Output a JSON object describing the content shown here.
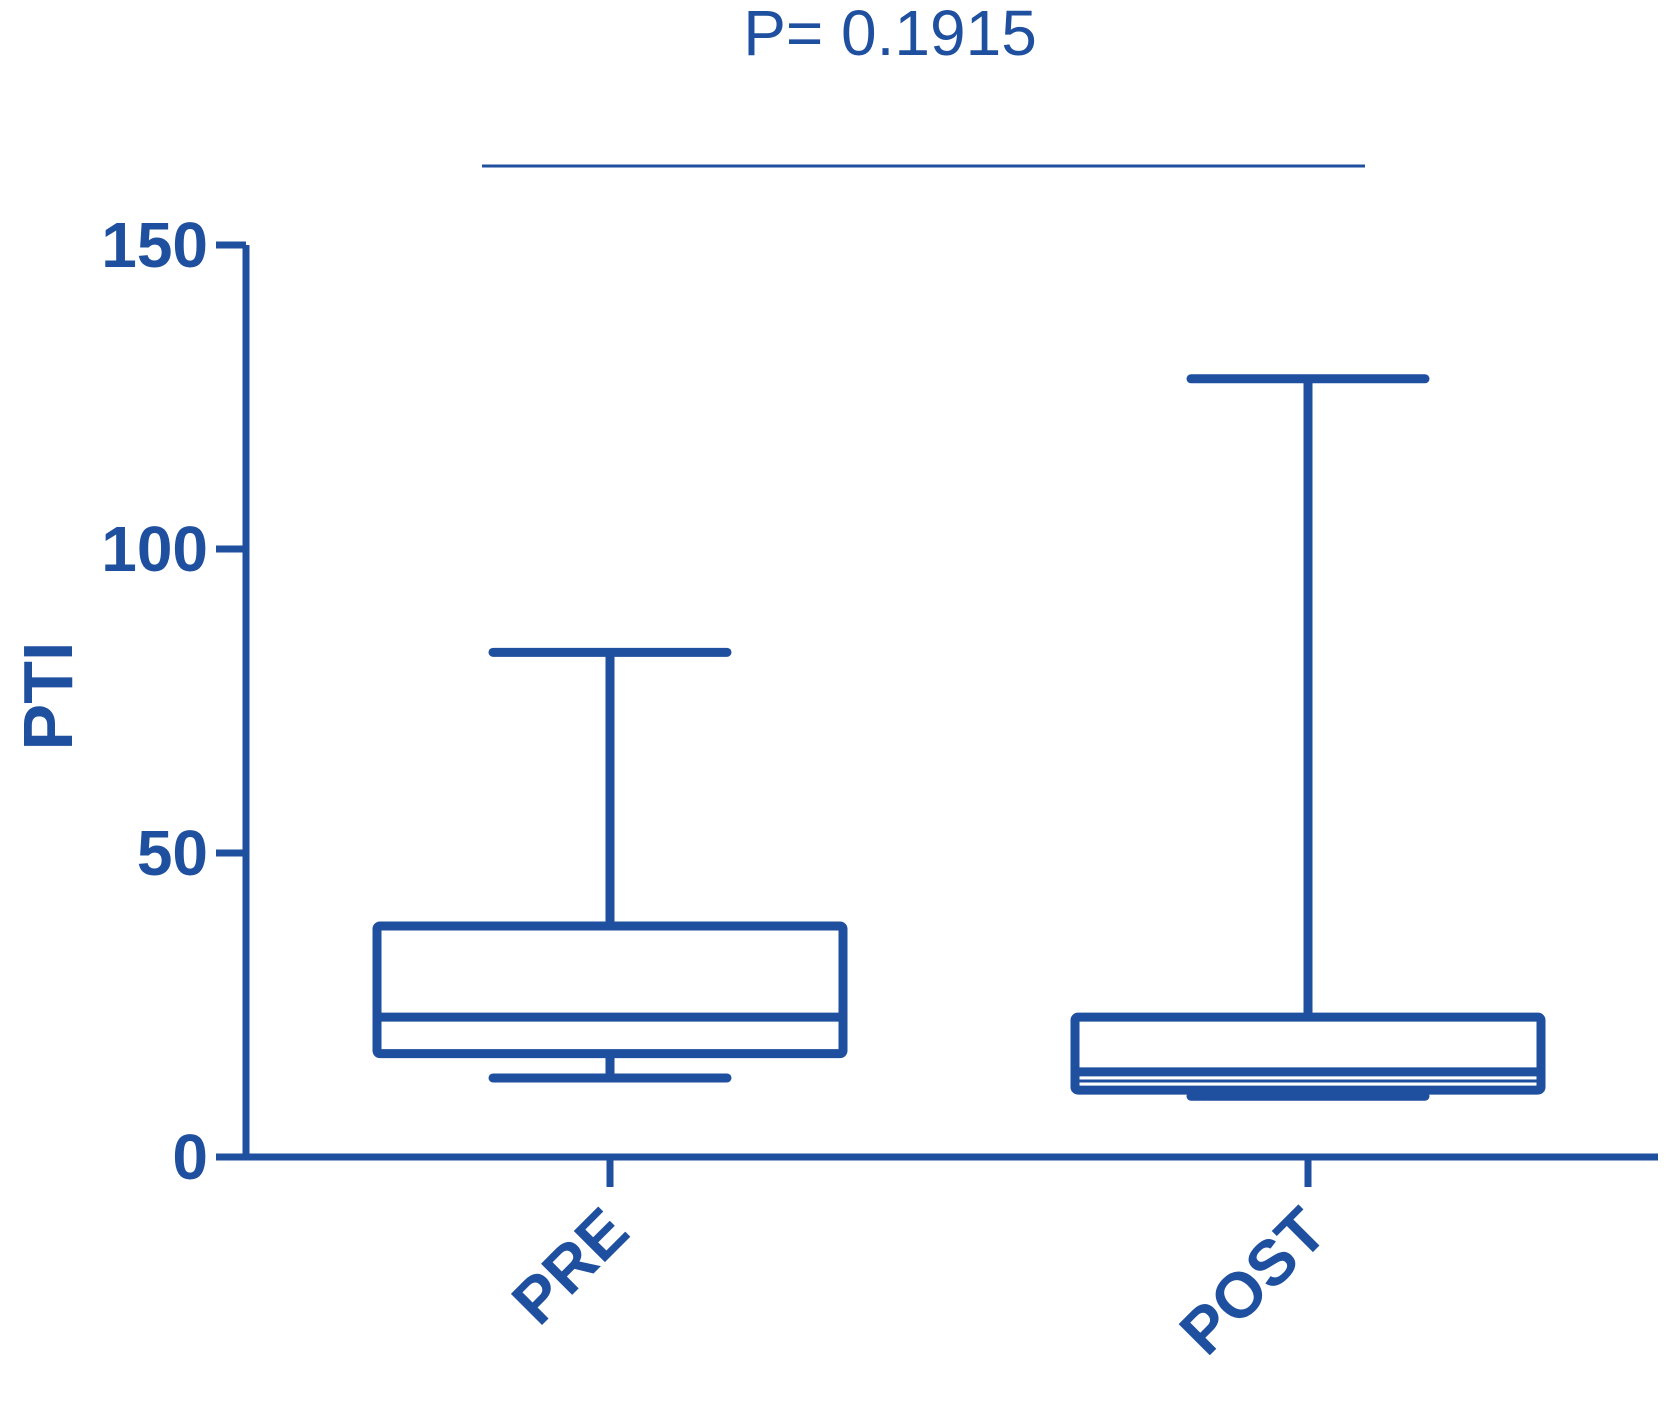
{
  "chart_data": {
    "type": "boxplot",
    "title": "",
    "xlabel": "",
    "ylabel": "PTI",
    "ylim": [
      0,
      150
    ],
    "yticks": [
      0,
      50,
      100,
      150
    ],
    "ytick_labels": [
      "0",
      "50",
      "100",
      "150"
    ],
    "grid": false,
    "color": "#1f4f9f",
    "categories": [
      "PRE",
      "POST"
    ],
    "boxes": [
      {
        "name": "PRE",
        "min": 13,
        "q1": 17,
        "median": 23,
        "q3": 38,
        "max": 83
      },
      {
        "name": "POST",
        "min": 10,
        "q1": 11,
        "median": 14,
        "q3": 23,
        "max": 128
      }
    ],
    "extra_lines": [
      {
        "box": "POST",
        "value": 12.5
      }
    ],
    "annotation": {
      "text": "P= 0.1915",
      "spans": [
        "PRE",
        "POST"
      ]
    }
  }
}
